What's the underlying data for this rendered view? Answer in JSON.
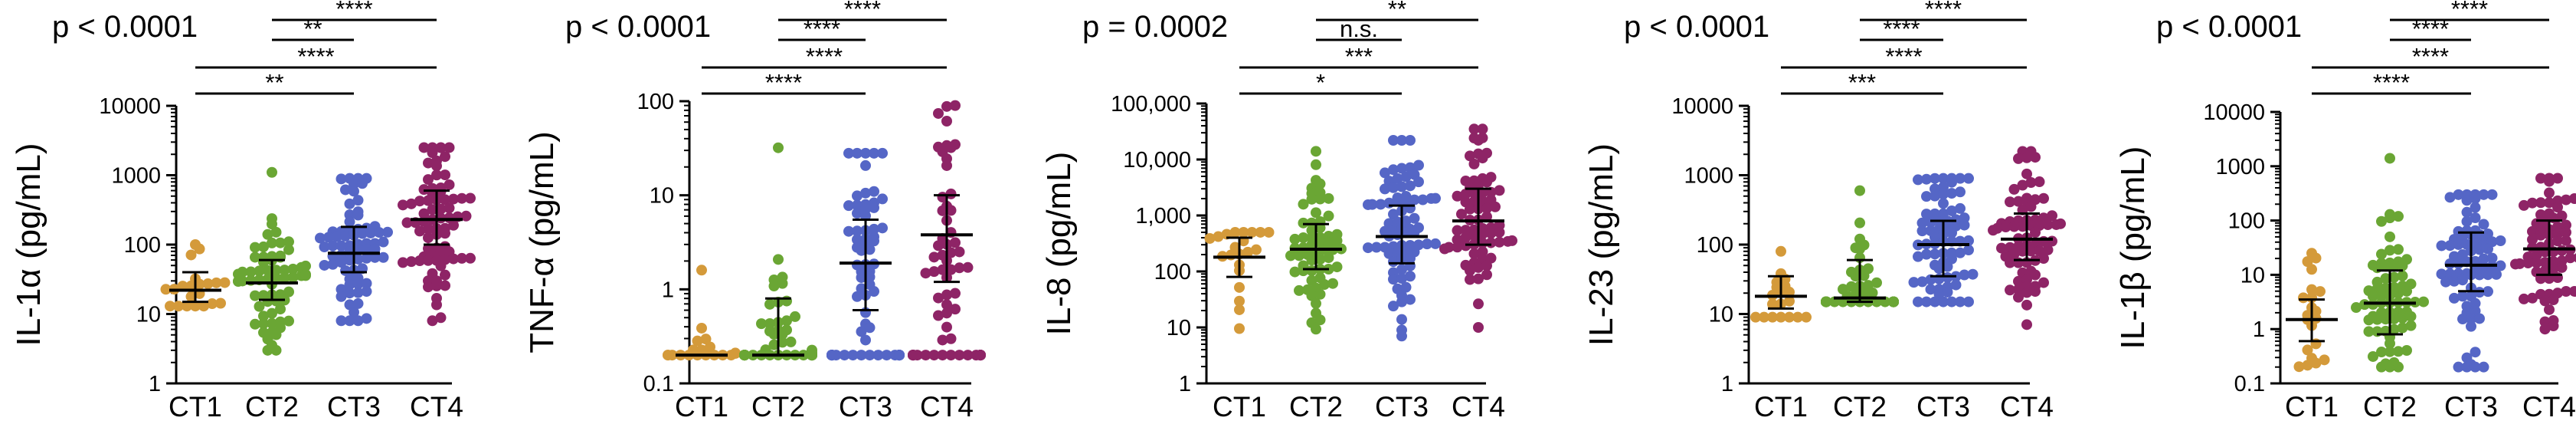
{
  "colors": {
    "CT1": "#D49A3A",
    "CT2": "#6AA634",
    "CT3": "#5566C6",
    "CT4": "#8E2466"
  },
  "chart_data": [
    {
      "type": "scatter",
      "ylabel": "IL-1α (pg/mL)",
      "scale": "log",
      "ylim": [
        1,
        10000
      ],
      "ticks": [
        "1",
        "10",
        "100",
        "1000",
        "10000"
      ],
      "categories": [
        "CT1",
        "CT2",
        "CT3",
        "CT4"
      ],
      "pvalue": "p < 0.0001",
      "series": [
        {
          "median": 22,
          "q1": 15,
          "q3": 40,
          "n": 20,
          "min": 13,
          "max": 100
        },
        {
          "median": 28,
          "q1": 16,
          "q3": 60,
          "n": 65,
          "min": 3,
          "max": 1100
        },
        {
          "median": 75,
          "q1": 40,
          "q3": 180,
          "n": 70,
          "min": 8,
          "max": 900
        },
        {
          "median": 230,
          "q1": 100,
          "q3": 600,
          "n": 75,
          "min": 8,
          "max": 2500
        }
      ],
      "comparisons": [
        {
          "from": 2,
          "to": 4,
          "label": "****"
        },
        {
          "from": 2,
          "to": 3,
          "label": "**"
        },
        {
          "from": 1,
          "to": 4,
          "label": "****"
        },
        {
          "from": 1,
          "to": 3,
          "label": "**"
        }
      ]
    },
    {
      "type": "scatter",
      "ylabel": "TNF-α (pg/mL)",
      "scale": "log",
      "ylim": [
        0.1,
        100
      ],
      "ticks": [
        "0.1",
        "1",
        "10",
        "100"
      ],
      "categories": [
        "CT1",
        "CT2",
        "CT3",
        "CT4"
      ],
      "pvalue": "p < 0.0001",
      "series": [
        {
          "median": 0.2,
          "q1": 0.2,
          "q3": 0.2,
          "n": 18,
          "min": 0.2,
          "max": 1.6,
          "floor": 0.2
        },
        {
          "median": 0.2,
          "q1": 0.2,
          "q3": 0.8,
          "n": 65,
          "min": 0.2,
          "max": 32,
          "floor": 0.2
        },
        {
          "median": 1.9,
          "q1": 0.6,
          "q3": 5.5,
          "n": 75,
          "min": 0.2,
          "max": 28,
          "floor": 0.2
        },
        {
          "median": 3.8,
          "q1": 1.2,
          "q3": 10,
          "n": 65,
          "min": 0.2,
          "max": 90,
          "floor": 0.2
        }
      ],
      "comparisons": [
        {
          "from": 2,
          "to": 4,
          "label": "****"
        },
        {
          "from": 2,
          "to": 3,
          "label": "****"
        },
        {
          "from": 1,
          "to": 4,
          "label": "****"
        },
        {
          "from": 1,
          "to": 3,
          "label": "****"
        }
      ]
    },
    {
      "type": "scatter",
      "ylabel": "IL-8 (pg/mL)",
      "scale": "log",
      "ylim": [
        1,
        100000
      ],
      "ticks": [
        "1",
        "10",
        "100",
        "1,000",
        "10,000",
        "100,000"
      ],
      "categories": [
        "CT1",
        "CT2",
        "CT3",
        "CT4"
      ],
      "pvalue": "p = 0.0002",
      "series": [
        {
          "median": 180,
          "q1": 80,
          "q3": 400,
          "n": 20,
          "min": 8,
          "max": 500
        },
        {
          "median": 250,
          "q1": 110,
          "q3": 700,
          "n": 60,
          "min": 8,
          "max": 14000
        },
        {
          "median": 420,
          "q1": 140,
          "q3": 1500,
          "n": 75,
          "min": 7,
          "max": 22000
        },
        {
          "median": 800,
          "q1": 300,
          "q3": 3000,
          "n": 70,
          "min": 10,
          "max": 35000
        }
      ],
      "comparisons": [
        {
          "from": 2,
          "to": 4,
          "label": "**"
        },
        {
          "from": 2,
          "to": 3,
          "label": "n.s."
        },
        {
          "from": 1,
          "to": 4,
          "label": "***"
        },
        {
          "from": 1,
          "to": 3,
          "label": "*"
        }
      ]
    },
    {
      "type": "scatter",
      "ylabel": "IL-23 (pg/mL)",
      "scale": "log",
      "ylim": [
        1,
        10000
      ],
      "ticks": [
        "1",
        "10",
        "100",
        "1000",
        "10000"
      ],
      "categories": [
        "CT1",
        "CT2",
        "CT3",
        "CT4"
      ],
      "pvalue": "p < 0.0001",
      "series": [
        {
          "median": 18,
          "q1": 12,
          "q3": 35,
          "n": 18,
          "min": 9,
          "max": 80
        },
        {
          "median": 17,
          "q1": 15,
          "q3": 60,
          "n": 65,
          "min": 15,
          "max": 600,
          "floor": 15
        },
        {
          "median": 100,
          "q1": 35,
          "q3": 220,
          "n": 75,
          "min": 15,
          "max": 900
        },
        {
          "median": 120,
          "q1": 60,
          "q3": 280,
          "n": 70,
          "min": 4,
          "max": 2200
        }
      ],
      "comparisons": [
        {
          "from": 2,
          "to": 4,
          "label": "****"
        },
        {
          "from": 2,
          "to": 3,
          "label": "****"
        },
        {
          "from": 1,
          "to": 4,
          "label": "****"
        },
        {
          "from": 1,
          "to": 3,
          "label": "***"
        }
      ]
    },
    {
      "type": "scatter",
      "ylabel": "IL-1β (pg/mL)",
      "scale": "log",
      "ylim": [
        0.1,
        10000
      ],
      "ticks": [
        "0.1",
        "1",
        "10",
        "100",
        "1000",
        "10000"
      ],
      "categories": [
        "CT1",
        "CT2",
        "CT3",
        "CT4"
      ],
      "pvalue": "p < 0.0001",
      "series": [
        {
          "median": 1.5,
          "q1": 0.6,
          "q3": 3.5,
          "n": 20,
          "min": 0.15,
          "max": 25
        },
        {
          "median": 3,
          "q1": 0.8,
          "q3": 12,
          "n": 70,
          "min": 0.2,
          "max": 1400
        },
        {
          "median": 15,
          "q1": 5,
          "q3": 60,
          "n": 75,
          "min": 0.2,
          "max": 300
        },
        {
          "median": 30,
          "q1": 10,
          "q3": 100,
          "n": 70,
          "min": 1,
          "max": 600
        }
      ],
      "comparisons": [
        {
          "from": 2,
          "to": 4,
          "label": "****"
        },
        {
          "from": 2,
          "to": 3,
          "label": "****"
        },
        {
          "from": 1,
          "to": 4,
          "label": "****"
        },
        {
          "from": 1,
          "to": 3,
          "label": "****"
        }
      ]
    }
  ]
}
